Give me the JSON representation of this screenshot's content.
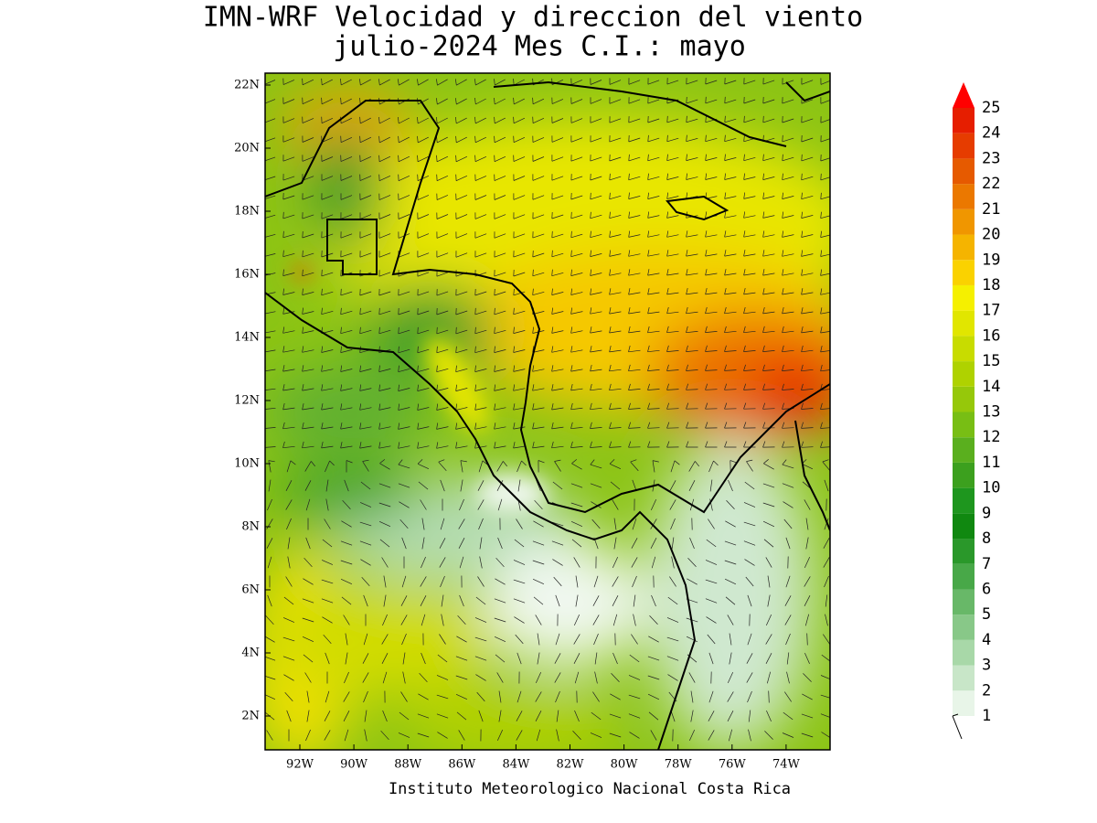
{
  "title": [
    "IMN-WRF Velocidad y direccion del viento",
    "julio-2024 Mes C.I.: mayo"
  ],
  "lat_labels": [
    "22N",
    "20N",
    "18N",
    "16N",
    "14N",
    "12N",
    "10N",
    "8N",
    "6N",
    "4N",
    "2N"
  ],
  "lon_labels": [
    "92W",
    "90W",
    "88W",
    "86W",
    "84W",
    "82W",
    "80W",
    "78W",
    "76W",
    "74W"
  ],
  "colorbar": {
    "levels": [
      1,
      2,
      3,
      4,
      5,
      6,
      7,
      8,
      9,
      10,
      11,
      12,
      13,
      14,
      15,
      16,
      17,
      18,
      19,
      20,
      21,
      22,
      23,
      24,
      25
    ],
    "colors": [
      "#e8f5e8",
      "#c8e6c8",
      "#a8d8a8",
      "#88c888",
      "#68b868",
      "#48a848",
      "#2a982a",
      "#108810",
      "#1e961e",
      "#3ca01e",
      "#5aaf1e",
      "#78be14",
      "#96c80a",
      "#afd200",
      "#c8dc00",
      "#e1e600",
      "#f5f000",
      "#fad200",
      "#f5b400",
      "#f09600",
      "#eb7800",
      "#e65a00",
      "#e63c00",
      "#e61e00"
    ],
    "over_color": "#ff0000"
  },
  "credit": "Instituto Meteorologico Nacional Costa Rica"
}
